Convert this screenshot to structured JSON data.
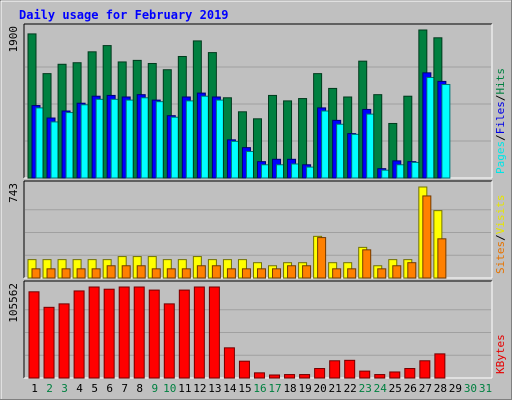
{
  "chart_data": {
    "type": "bar",
    "title": "Daily usage for February 2019",
    "categories": [
      "1",
      "2",
      "3",
      "4",
      "5",
      "6",
      "7",
      "8",
      "9",
      "10",
      "11",
      "12",
      "13",
      "14",
      "15",
      "16",
      "17",
      "18",
      "19",
      "20",
      "21",
      "22",
      "23",
      "24",
      "25",
      "26",
      "27",
      "28",
      "29",
      "30",
      "31"
    ],
    "weekend_days": [
      "2",
      "3",
      "9",
      "10",
      "16",
      "17",
      "23",
      "24",
      "30",
      "31"
    ],
    "panels": [
      {
        "id": "hits-files-pages",
        "max_label": "1900",
        "ymax": 1900,
        "side_labels": [
          "Pages",
          "/",
          "Files",
          "/",
          "Hits"
        ],
        "series": [
          {
            "name": "Hits",
            "color": "#008040",
            "values": [
              1850,
              1340,
              1460,
              1480,
              1620,
              1700,
              1490,
              1510,
              1470,
              1390,
              1560,
              1760,
              1610,
              1030,
              850,
              760,
              1060,
              990,
              1020,
              1340,
              1150,
              1040,
              1500,
              1070,
              700,
              1050,
              1900,
              1800,
              null,
              null,
              null
            ]
          },
          {
            "name": "Files",
            "color": "#0000ff",
            "values": [
              930,
              770,
              860,
              960,
              1050,
              1060,
              1040,
              1070,
              1000,
              800,
              1040,
              1090,
              1040,
              490,
              390,
              210,
              240,
              240,
              170,
              900,
              740,
              570,
              880,
              120,
              220,
              210,
              1350,
              1240,
              null,
              null,
              null
            ]
          },
          {
            "name": "Pages",
            "color": "#00ffff",
            "values": [
              900,
              720,
              840,
              940,
              1010,
              1010,
              1000,
              1030,
              980,
              780,
              990,
              1050,
              1000,
              470,
              340,
              170,
              170,
              180,
              140,
              860,
              690,
              560,
              820,
              100,
              170,
              200,
              1290,
              1200,
              null,
              null,
              null
            ]
          }
        ]
      },
      {
        "id": "visits-sites",
        "max_label": "743",
        "ymax": 743,
        "side_labels": [
          "Sites",
          "/",
          "Visits"
        ],
        "series": [
          {
            "name": "Visits",
            "color": "#ffff00",
            "values": [
              150,
              150,
              150,
              150,
              150,
              150,
              175,
              175,
              175,
              150,
              150,
              175,
              150,
              150,
              150,
              125,
              100,
              125,
              125,
              340,
              125,
              125,
              250,
              100,
              150,
              150,
              743,
              550,
              null,
              null,
              null
            ]
          },
          {
            "name": "Sites",
            "color": "#ff8000",
            "values": [
              75,
              75,
              75,
              75,
              75,
              100,
              100,
              100,
              75,
              75,
              75,
              100,
              100,
              75,
              75,
              75,
              75,
              100,
              100,
              330,
              75,
              75,
              230,
              75,
              100,
              125,
              670,
              320,
              null,
              null,
              null
            ]
          }
        ]
      },
      {
        "id": "kbytes",
        "max_label": "105562",
        "ymax": 105562,
        "side_labels": [
          "KBytes"
        ],
        "series": [
          {
            "name": "KBytes",
            "color": "#ff0000",
            "values": [
              100000,
              82000,
              86000,
              101000,
              105562,
              103000,
              105562,
              105562,
              102000,
              86000,
              102000,
              105562,
              105562,
              35000,
              19500,
              6000,
              3500,
              4000,
              4000,
              11000,
              20000,
              20500,
              8000,
              4000,
              7000,
              11000,
              20000,
              28000,
              null,
              null,
              null
            ]
          }
        ]
      }
    ]
  },
  "colors": {
    "background": "#c0c0c0",
    "title": "#0000ff",
    "weekday_label": "#000000",
    "weekend_label": "#008040"
  }
}
